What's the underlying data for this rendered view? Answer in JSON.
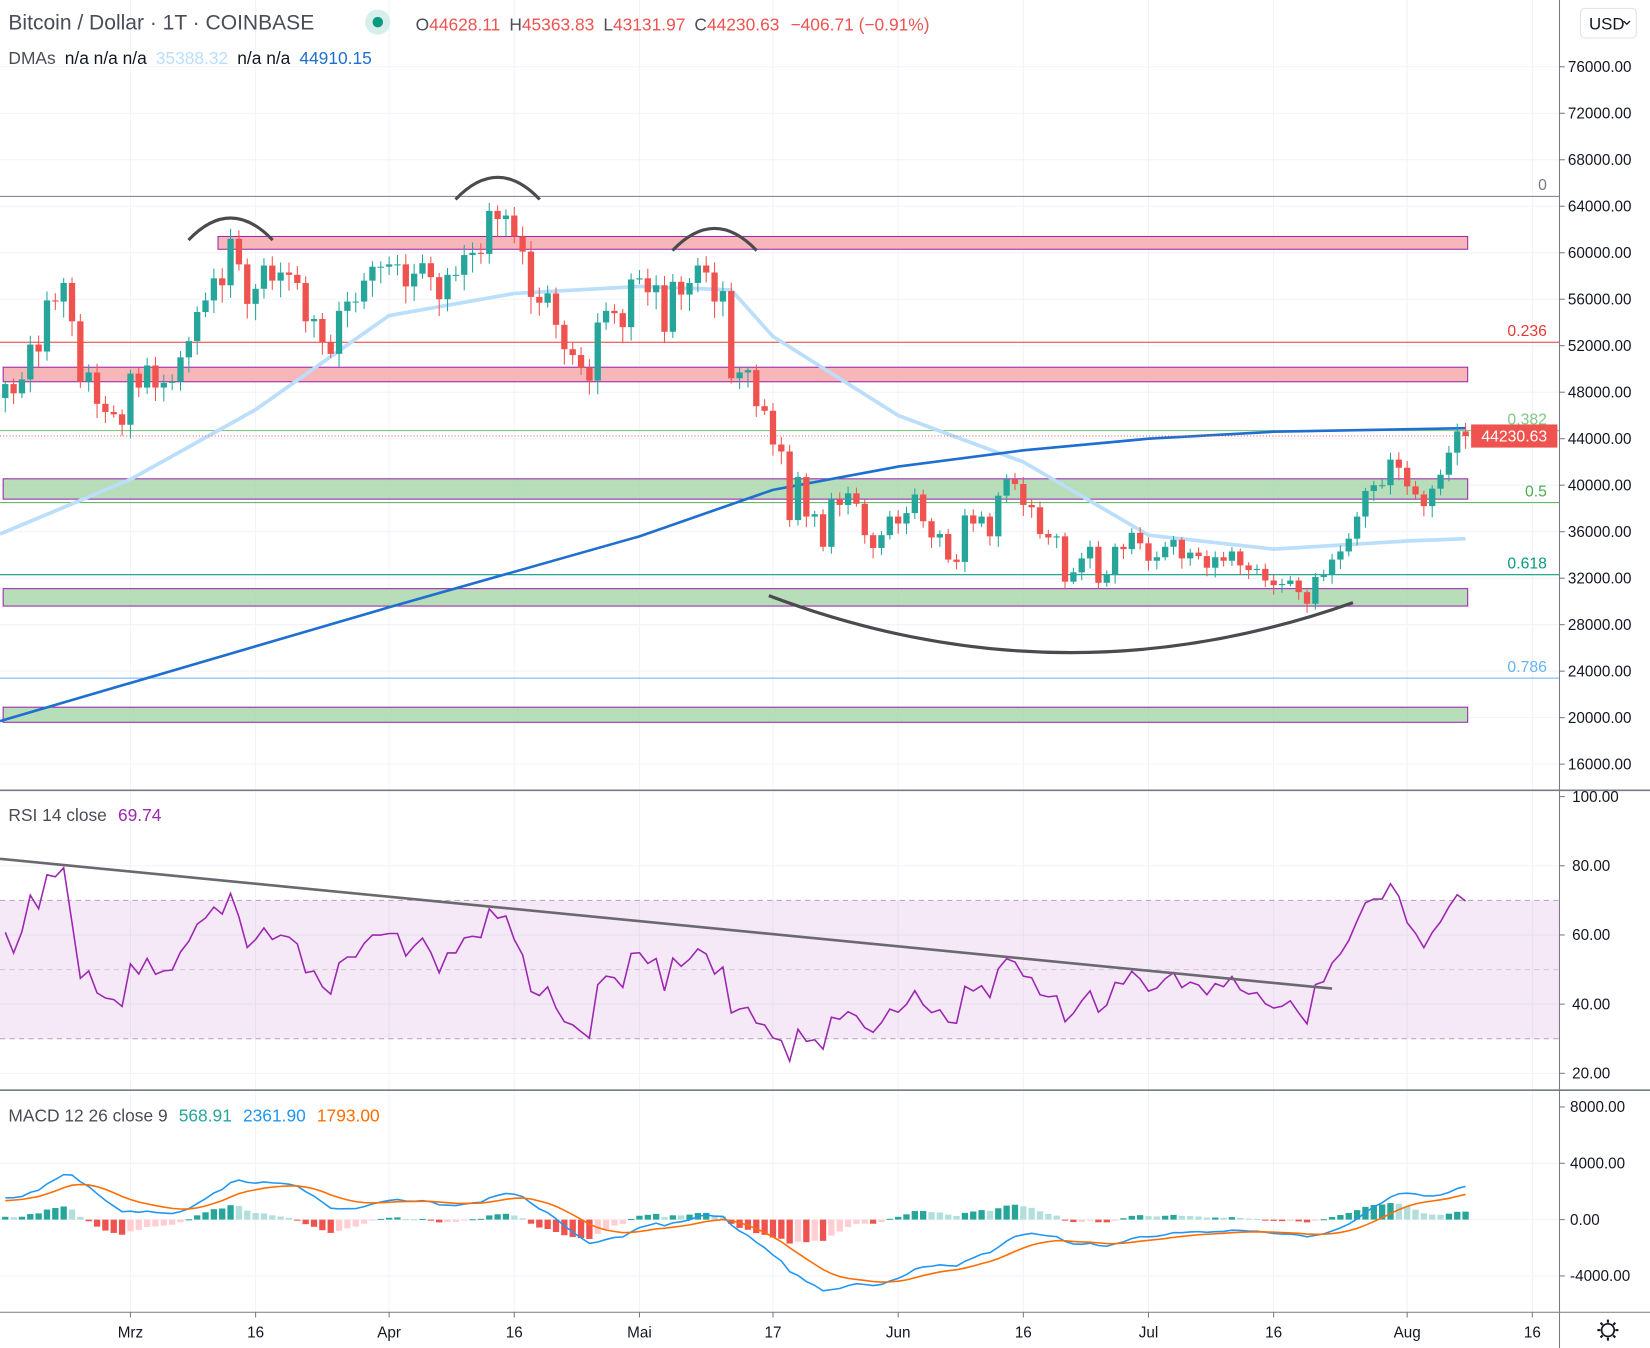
{
  "header": {
    "symbol": "Bitcoin / Dollar · 1T · COINBASE",
    "o_label": "O",
    "o": "44628.11",
    "h_label": "H",
    "h": "45363.83",
    "l_label": "L",
    "l": "43131.97",
    "c_label": "C",
    "c": "44230.63",
    "change": "−406.71 (−0.91%)",
    "market_status_icon": "market-open-dot",
    "dma_label": "DMAs",
    "dma_na": "n/a n/a n/a",
    "dma_50": "35388.32",
    "dma_na2": "n/a n/a",
    "dma_200": "44910.15"
  },
  "currency_button": "USD",
  "last_price_label": "44230.63",
  "price_axis": [
    "76000.00",
    "72000.00",
    "68000.00",
    "64000.00",
    "60000.00",
    "56000.00",
    "52000.00",
    "48000.00",
    "44000.00",
    "40000.00",
    "36000.00",
    "32000.00",
    "28000.00",
    "24000.00",
    "20000.00",
    "16000.00"
  ],
  "time_axis": [
    {
      "label": "Mrz",
      "date": "03-01"
    },
    {
      "label": "16",
      "date": "03-16"
    },
    {
      "label": "Apr",
      "date": "04-01"
    },
    {
      "label": "16",
      "date": "04-16"
    },
    {
      "label": "Mai",
      "date": "05-01"
    },
    {
      "label": "17",
      "date": "05-17"
    },
    {
      "label": "Jun",
      "date": "06-01"
    },
    {
      "label": "16",
      "date": "06-16"
    },
    {
      "label": "Jul",
      "date": "07-01"
    },
    {
      "label": "16",
      "date": "07-16"
    },
    {
      "label": "Aug",
      "date": "08-01"
    },
    {
      "label": "16",
      "date": "08-16"
    }
  ],
  "colors": {
    "up": "#26a69a",
    "down": "#ef5350",
    "dma50": "#bbdefb",
    "dma200": "#1e6fd0",
    "rsi": "#9c27b0",
    "macd": "#2196f3",
    "signal": "#ff6d00",
    "zone_red": "#f7b3b5",
    "zone_green": "#a5d6a7"
  },
  "fib_levels": [
    {
      "label": "0",
      "price": 64850,
      "color": "#787b86"
    },
    {
      "label": "0.236",
      "price": 52300,
      "color": "#e53935"
    },
    {
      "label": "0.382",
      "price": 44700,
      "color": "#81c784"
    },
    {
      "label": "0.5",
      "price": 38500,
      "color": "#4caf50"
    },
    {
      "label": "0.618",
      "price": 32300,
      "color": "#089981"
    },
    {
      "label": "0.786",
      "price": 23400,
      "color": "#64b5f6"
    }
  ],
  "zones": [
    {
      "type": "resistance",
      "from": "03-12",
      "low": 60300,
      "high": 61400
    },
    {
      "type": "resistance",
      "from": "02-14",
      "low": 48900,
      "high": 50150
    },
    {
      "type": "support",
      "from": "02-14",
      "low": 38800,
      "high": 40550
    },
    {
      "type": "support",
      "from": "02-14",
      "low": 29600,
      "high": 31100
    },
    {
      "type": "support",
      "from": "02-14",
      "low": 19600,
      "high": 20900
    }
  ],
  "rsi": {
    "label": "RSI 14 close",
    "value": "69.74",
    "axis": [
      "100.00",
      "80.00",
      "60.00",
      "40.00",
      "20.00"
    ],
    "band": [
      30,
      70
    ],
    "trendline": [
      [
        "02-14",
        82
      ],
      [
        "07-23",
        44.5
      ]
    ]
  },
  "macd": {
    "label": "MACD 12 26 close 9",
    "hist": "568.91",
    "macd": "2361.90",
    "signal": "1793.00",
    "axis": [
      "8000.00",
      "4000.00",
      "0.00",
      "-4000.00"
    ]
  },
  "chart_data": {
    "type": "candlestick",
    "ylim": [
      14000,
      82000
    ],
    "dma50": [
      [
        "02-14",
        35800
      ],
      [
        "03-01",
        40500
      ],
      [
        "03-16",
        46500
      ],
      [
        "04-01",
        54600
      ],
      [
        "04-16",
        56500
      ],
      [
        "05-01",
        57100
      ],
      [
        "05-12",
        56800
      ],
      [
        "05-17",
        52800
      ],
      [
        "06-01",
        46000
      ],
      [
        "06-16",
        42000
      ],
      [
        "07-01",
        35700
      ],
      [
        "07-16",
        34500
      ],
      [
        "08-01",
        35200
      ],
      [
        "08-08",
        35400
      ]
    ],
    "dma200": [
      [
        "02-14",
        19700
      ],
      [
        "04-01",
        29500
      ],
      [
        "05-01",
        35600
      ],
      [
        "05-17",
        39600
      ],
      [
        "06-01",
        41600
      ],
      [
        "06-16",
        43000
      ],
      [
        "07-01",
        44000
      ],
      [
        "07-16",
        44600
      ],
      [
        "08-08",
        44910
      ]
    ],
    "closes": [
      [
        "02-14",
        48700
      ],
      [
        "02-15",
        47900
      ],
      [
        "02-16",
        49100
      ],
      [
        "02-17",
        52100
      ],
      [
        "02-18",
        51500
      ],
      [
        "02-19",
        55900
      ],
      [
        "02-20",
        55800
      ],
      [
        "02-21",
        57400
      ],
      [
        "02-22",
        54100
      ],
      [
        "02-23",
        48900
      ],
      [
        "02-24",
        49700
      ],
      [
        "02-25",
        47000
      ],
      [
        "02-26",
        46300
      ],
      [
        "02-27",
        46100
      ],
      [
        "02-28",
        45200
      ],
      [
        "03-01",
        49600
      ],
      [
        "03-02",
        48400
      ],
      [
        "03-03",
        50300
      ],
      [
        "03-04",
        48400
      ],
      [
        "03-05",
        48800
      ],
      [
        "03-06",
        48900
      ],
      [
        "03-07",
        51000
      ],
      [
        "03-08",
        52400
      ],
      [
        "03-09",
        54900
      ],
      [
        "03-10",
        55900
      ],
      [
        "03-11",
        57800
      ],
      [
        "03-12",
        57200
      ],
      [
        "03-13",
        61200
      ],
      [
        "03-14",
        59000
      ],
      [
        "03-15",
        55600
      ],
      [
        "03-16",
        56900
      ],
      [
        "03-17",
        58900
      ],
      [
        "03-18",
        57600
      ],
      [
        "03-19",
        58300
      ],
      [
        "03-20",
        58100
      ],
      [
        "03-21",
        57400
      ],
      [
        "03-22",
        54100
      ],
      [
        "03-23",
        54300
      ],
      [
        "03-24",
        52300
      ],
      [
        "03-25",
        51300
      ],
      [
        "03-26",
        55000
      ],
      [
        "03-27",
        55800
      ],
      [
        "03-28",
        55800
      ],
      [
        "03-29",
        57600
      ],
      [
        "03-30",
        58800
      ],
      [
        "03-31",
        58800
      ],
      [
        "04-01",
        59000
      ],
      [
        "04-02",
        59000
      ],
      [
        "04-03",
        57100
      ],
      [
        "04-04",
        58200
      ],
      [
        "04-05",
        59100
      ],
      [
        "04-06",
        57900
      ],
      [
        "04-07",
        56000
      ],
      [
        "04-08",
        58100
      ],
      [
        "04-09",
        58100
      ],
      [
        "04-10",
        59800
      ],
      [
        "04-11",
        60000
      ],
      [
        "04-12",
        59900
      ],
      [
        "04-13",
        63600
      ],
      [
        "04-14",
        62900
      ],
      [
        "04-15",
        63200
      ],
      [
        "04-16",
        61400
      ],
      [
        "04-17",
        60100
      ],
      [
        "04-18",
        56200
      ],
      [
        "04-19",
        55700
      ],
      [
        "04-20",
        56500
      ],
      [
        "04-21",
        53800
      ],
      [
        "04-22",
        51700
      ],
      [
        "04-23",
        51200
      ],
      [
        "04-24",
        50100
      ],
      [
        "04-25",
        49000
      ],
      [
        "04-26",
        54000
      ],
      [
        "04-27",
        55000
      ],
      [
        "04-28",
        54800
      ],
      [
        "04-29",
        53600
      ],
      [
        "04-30",
        57700
      ],
      [
        "05-01",
        57800
      ],
      [
        "05-02",
        56600
      ],
      [
        "05-03",
        57200
      ],
      [
        "05-04",
        53200
      ],
      [
        "05-05",
        57500
      ],
      [
        "05-06",
        56400
      ],
      [
        "05-07",
        57400
      ],
      [
        "05-08",
        58900
      ],
      [
        "05-09",
        58300
      ],
      [
        "05-10",
        55800
      ],
      [
        "05-11",
        56700
      ],
      [
        "05-12",
        49200
      ],
      [
        "05-13",
        49700
      ],
      [
        "05-14",
        49900
      ],
      [
        "05-15",
        46800
      ],
      [
        "05-16",
        46400
      ],
      [
        "05-17",
        43500
      ],
      [
        "05-18",
        42900
      ],
      [
        "05-19",
        37000
      ],
      [
        "05-20",
        40700
      ],
      [
        "05-21",
        37300
      ],
      [
        "05-22",
        37500
      ],
      [
        "05-23",
        34700
      ],
      [
        "05-24",
        38800
      ],
      [
        "05-25",
        38300
      ],
      [
        "05-26",
        39300
      ],
      [
        "05-27",
        38400
      ],
      [
        "05-28",
        35700
      ],
      [
        "05-29",
        34600
      ],
      [
        "05-30",
        35700
      ],
      [
        "05-31",
        37300
      ],
      [
        "06-01",
        36700
      ],
      [
        "06-02",
        37600
      ],
      [
        "06-03",
        39200
      ],
      [
        "06-04",
        36900
      ],
      [
        "06-05",
        35500
      ],
      [
        "06-06",
        35800
      ],
      [
        "06-07",
        33600
      ],
      [
        "06-08",
        33400
      ],
      [
        "06-09",
        37400
      ],
      [
        "06-10",
        36700
      ],
      [
        "06-11",
        37300
      ],
      [
        "06-12",
        35600
      ],
      [
        "06-13",
        39100
      ],
      [
        "06-14",
        40500
      ],
      [
        "06-15",
        40100
      ],
      [
        "06-16",
        38300
      ],
      [
        "06-17",
        38100
      ],
      [
        "06-18",
        35800
      ],
      [
        "06-19",
        35500
      ],
      [
        "06-20",
        35600
      ],
      [
        "06-21",
        31700
      ],
      [
        "06-22",
        32500
      ],
      [
        "06-23",
        33700
      ],
      [
        "06-24",
        34700
      ],
      [
        "06-25",
        31600
      ],
      [
        "06-26",
        32300
      ],
      [
        "06-27",
        34700
      ],
      [
        "06-28",
        34500
      ],
      [
        "06-29",
        35900
      ],
      [
        "06-30",
        35000
      ],
      [
        "07-01",
        33500
      ],
      [
        "07-02",
        33800
      ],
      [
        "07-03",
        34700
      ],
      [
        "07-04",
        35300
      ],
      [
        "07-05",
        33700
      ],
      [
        "07-06",
        34200
      ],
      [
        "07-07",
        33900
      ],
      [
        "07-08",
        32900
      ],
      [
        "07-09",
        33800
      ],
      [
        "07-10",
        33500
      ],
      [
        "07-11",
        34300
      ],
      [
        "07-12",
        33100
      ],
      [
        "07-13",
        32700
      ],
      [
        "07-14",
        32800
      ],
      [
        "07-15",
        31800
      ],
      [
        "07-16",
        31400
      ],
      [
        "07-17",
        31500
      ],
      [
        "07-18",
        31800
      ],
      [
        "07-19",
        30800
      ],
      [
        "07-20",
        29800
      ],
      [
        "07-21",
        32100
      ],
      [
        "07-22",
        32300
      ],
      [
        "07-23",
        33600
      ],
      [
        "07-24",
        34300
      ],
      [
        "07-25",
        35400
      ],
      [
        "07-26",
        37300
      ],
      [
        "07-27",
        39500
      ],
      [
        "07-28",
        40000
      ],
      [
        "07-29",
        40000
      ],
      [
        "07-30",
        42200
      ],
      [
        "07-31",
        41500
      ],
      [
        "08-01",
        39900
      ],
      [
        "08-02",
        39200
      ],
      [
        "08-03",
        38200
      ],
      [
        "08-04",
        39700
      ],
      [
        "08-05",
        40900
      ],
      [
        "08-06",
        42800
      ],
      [
        "08-07",
        44628
      ],
      [
        "08-08",
        44230
      ]
    ],
    "pattern_arcs": [
      {
        "type": "shoulder",
        "center": "03-13"
      },
      {
        "type": "head",
        "center": "04-14"
      },
      {
        "type": "shoulder",
        "center": "05-10"
      },
      {
        "type": "cup",
        "from": "05-16",
        "to": "07-25"
      }
    ]
  }
}
